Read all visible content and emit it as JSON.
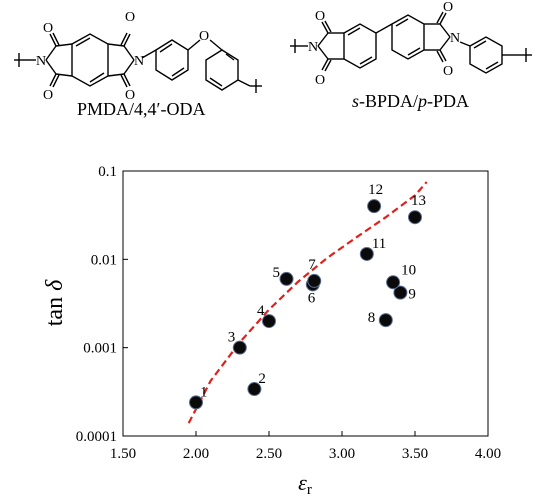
{
  "structures": {
    "left_label": "PMDA/4,4′-ODA",
    "right_label_parts": [
      "s",
      "-BPDA/",
      "p",
      "-PDA"
    ],
    "atoms": {
      "O": "O",
      "N": "N"
    }
  },
  "chart_data": {
    "type": "scatter",
    "title": "",
    "xlabel": "εr",
    "xlabel_main": "ε",
    "xlabel_sub": "r",
    "ylabel": "tan δ",
    "ylabel_main": "tan ",
    "ylabel_delta": "δ",
    "xlim": [
      1.5,
      4.0
    ],
    "ylim": [
      0.0001,
      0.1
    ],
    "yscale": "log",
    "grid": false,
    "x_ticks": [
      "1.50",
      "2.00",
      "2.50",
      "3.00",
      "3.50",
      "4.00"
    ],
    "y_ticks": [
      "0.1",
      "0.01",
      "0.001",
      "0.0001"
    ],
    "points": [
      {
        "label": "1",
        "x": 2.0,
        "y": 0.00024
      },
      {
        "label": "2",
        "x": 2.4,
        "y": 0.00034
      },
      {
        "label": "3",
        "x": 2.3,
        "y": 0.001
      },
      {
        "label": "4",
        "x": 2.5,
        "y": 0.002
      },
      {
        "label": "5",
        "x": 2.62,
        "y": 0.006
      },
      {
        "label": "6",
        "x": 2.8,
        "y": 0.0052
      },
      {
        "label": "7",
        "x": 2.81,
        "y": 0.0057
      },
      {
        "label": "8",
        "x": 3.3,
        "y": 0.00205
      },
      {
        "label": "9",
        "x": 3.4,
        "y": 0.0042
      },
      {
        "label": "10",
        "x": 3.35,
        "y": 0.0055
      },
      {
        "label": "11",
        "x": 3.17,
        "y": 0.0115
      },
      {
        "label": "12",
        "x": 3.22,
        "y": 0.04
      },
      {
        "label": "13",
        "x": 3.5,
        "y": 0.03
      }
    ],
    "trend_line": {
      "style": "dashed",
      "color": "#e0201b",
      "x": [
        1.95,
        2.1,
        2.3,
        2.5,
        2.7,
        2.9,
        3.1,
        3.3,
        3.5,
        3.58
      ],
      "y": [
        0.00014,
        0.00042,
        0.00115,
        0.0027,
        0.0056,
        0.0104,
        0.0178,
        0.03,
        0.053,
        0.075
      ]
    },
    "marker_color": "#0a0a0a"
  }
}
